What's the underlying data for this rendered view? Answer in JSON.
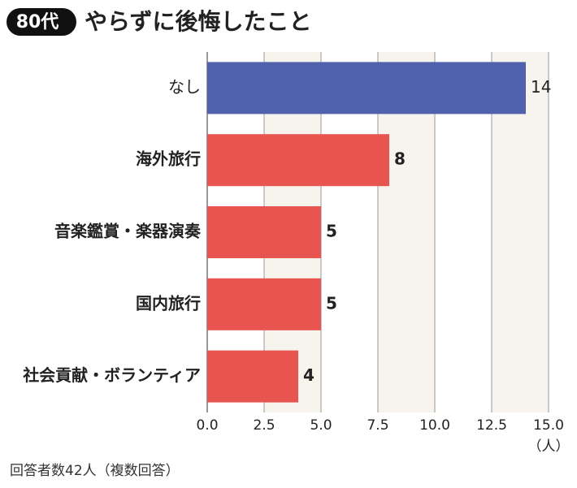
{
  "chart_data": {
    "type": "barh",
    "badge": "80代",
    "title": "やらずに後悔したこと",
    "categories": [
      "なし",
      "海外旅行",
      "音楽鑑賞・楽器演奏",
      "国内旅行",
      "社会貢献・ボランティア"
    ],
    "values": [
      14,
      8,
      5,
      5,
      4
    ],
    "colors": [
      "#5061ae",
      "#e8544f",
      "#e8544f",
      "#e8544f",
      "#e8544f"
    ],
    "xlim": [
      0,
      15
    ],
    "xticks": [
      {
        "value": 0,
        "label": "0.0"
      },
      {
        "value": 2.5,
        "label": "2.5"
      },
      {
        "value": 5,
        "label": "5.0"
      },
      {
        "value": 7.5,
        "label": "7.5"
      },
      {
        "value": 10,
        "label": "10.0"
      },
      {
        "value": 12.5,
        "label": "12.5"
      },
      {
        "value": 15,
        "label": "15.0"
      }
    ],
    "unit_label": "（人）",
    "note": "回答者数42人（複数回答）",
    "grid": true
  }
}
